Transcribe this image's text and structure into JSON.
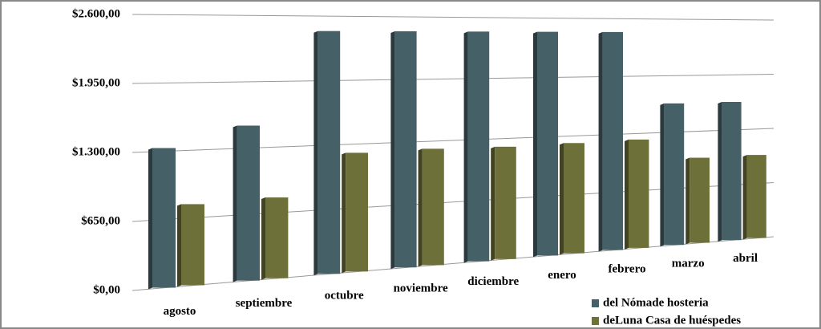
{
  "chart_data": {
    "type": "bar",
    "categories": [
      "agosto",
      "septiembre",
      "octubre",
      "noviembre",
      "diciembre",
      "enero",
      "febrero",
      "marzo",
      "abril"
    ],
    "series": [
      {
        "name": "del Nómade hosteria",
        "color": "#466068",
        "values": [
          1330,
          1520,
          2450,
          2450,
          2450,
          2450,
          2450,
          1630,
          1630
        ]
      },
      {
        "name": "deLuna Casa de huéspedes",
        "color": "#6e703a",
        "values": [
          780,
          800,
          1210,
          1220,
          1210,
          1220,
          1230,
          990,
          990
        ]
      }
    ],
    "ylim": [
      0,
      2600
    ],
    "yticks": [
      {
        "value": 0,
        "label": "$0,00"
      },
      {
        "value": 650,
        "label": "$650,00"
      },
      {
        "value": 1300,
        "label": "$1.300,00"
      },
      {
        "value": 1950,
        "label": "$1.950,00"
      },
      {
        "value": 2600,
        "label": "$2.600,00"
      }
    ],
    "grid": true,
    "legend": "bottom-right"
  }
}
